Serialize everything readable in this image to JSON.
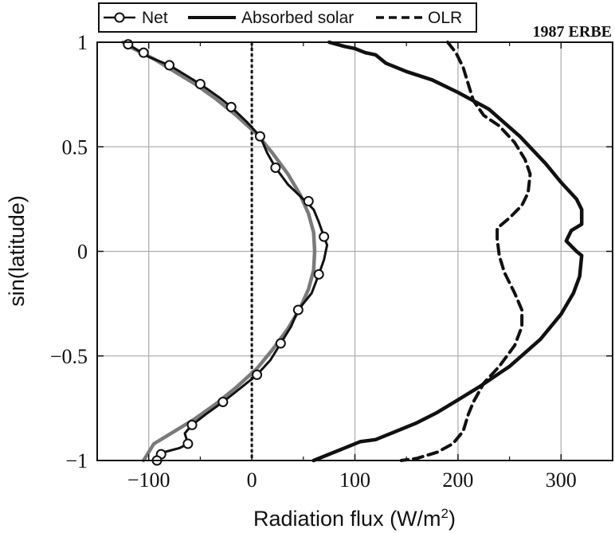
{
  "chart_data": {
    "type": "line",
    "corner_label": "1987 ERBE",
    "xlabel": "Radiation flux (W/m",
    "xlabel_sup": "2",
    "xlabel_close": ")",
    "ylabel": "sin(latitude)",
    "xlim": [
      -150,
      350
    ],
    "ylim": [
      -1,
      1
    ],
    "xticks": [
      -100,
      0,
      100,
      200,
      300
    ],
    "xtick_labels": [
      "−100",
      "0",
      "100",
      "200",
      "300"
    ],
    "yticks": [
      1,
      0.5,
      0,
      -0.5,
      -1
    ],
    "ytick_labels": [
      "1",
      "0.5",
      "0",
      "−0.5",
      "−1"
    ],
    "grid": true,
    "legend_position": "top",
    "zero_line_x": 0,
    "colors": {
      "series": "#111111",
      "fit": "#7a7a7a",
      "grid": "#b0b0b0"
    },
    "series": [
      {
        "name": "Net",
        "style": "solid-with-circle-markers",
        "points": [
          [
            -120,
            0.99
          ],
          [
            -110,
            0.96
          ],
          [
            -100,
            0.93
          ],
          [
            -80,
            0.89
          ],
          [
            -60,
            0.83
          ],
          [
            -50,
            0.8
          ],
          [
            -30,
            0.73
          ],
          [
            -20,
            0.69
          ],
          [
            -5,
            0.62
          ],
          [
            8,
            0.55
          ],
          [
            15,
            0.47
          ],
          [
            23,
            0.4
          ],
          [
            35,
            0.32
          ],
          [
            52,
            0.24
          ],
          [
            60,
            0.2
          ],
          [
            65,
            0.14
          ],
          [
            70,
            0.07
          ],
          [
            73,
            0.03
          ],
          [
            70,
            -0.04
          ],
          [
            65,
            -0.11
          ],
          [
            58,
            -0.2
          ],
          [
            45,
            -0.28
          ],
          [
            38,
            -0.36
          ],
          [
            28,
            -0.44
          ],
          [
            18,
            -0.52
          ],
          [
            5,
            -0.59
          ],
          [
            -10,
            -0.65
          ],
          [
            -28,
            -0.72
          ],
          [
            -45,
            -0.78
          ],
          [
            -58,
            -0.83
          ],
          [
            -65,
            -0.87
          ],
          [
            -62,
            -0.92
          ],
          [
            -70,
            -0.94
          ],
          [
            -85,
            -0.96
          ],
          [
            -90,
            -0.97
          ],
          [
            -95,
            -0.99
          ]
        ],
        "markers": [
          [
            -120,
            0.99
          ],
          [
            -105,
            0.95
          ],
          [
            -80,
            0.89
          ],
          [
            -50,
            0.8
          ],
          [
            -20,
            0.69
          ],
          [
            8,
            0.55
          ],
          [
            23,
            0.4
          ],
          [
            55,
            0.24
          ],
          [
            70,
            0.07
          ],
          [
            65,
            -0.11
          ],
          [
            45,
            -0.28
          ],
          [
            28,
            -0.44
          ],
          [
            5,
            -0.59
          ],
          [
            -28,
            -0.72
          ],
          [
            -58,
            -0.83
          ],
          [
            -62,
            -0.92
          ],
          [
            -88,
            -0.97
          ],
          [
            -92,
            -1.0
          ]
        ]
      },
      {
        "name": "Absorbed solar",
        "style": "solid-thick",
        "points": [
          [
            75,
            1.0
          ],
          [
            90,
            0.98
          ],
          [
            100,
            0.97
          ],
          [
            110,
            0.95
          ],
          [
            120,
            0.94
          ],
          [
            130,
            0.9
          ],
          [
            150,
            0.86
          ],
          [
            175,
            0.82
          ],
          [
            200,
            0.76
          ],
          [
            230,
            0.68
          ],
          [
            260,
            0.55
          ],
          [
            285,
            0.42
          ],
          [
            300,
            0.33
          ],
          [
            315,
            0.25
          ],
          [
            320,
            0.2
          ],
          [
            320,
            0.13
          ],
          [
            310,
            0.1
          ],
          [
            305,
            0.05
          ],
          [
            315,
            0.0
          ],
          [
            320,
            -0.02
          ],
          [
            318,
            -0.12
          ],
          [
            312,
            -0.2
          ],
          [
            300,
            -0.3
          ],
          [
            280,
            -0.42
          ],
          [
            250,
            -0.55
          ],
          [
            220,
            -0.65
          ],
          [
            200,
            -0.71
          ],
          [
            180,
            -0.77
          ],
          [
            160,
            -0.82
          ],
          [
            140,
            -0.86
          ],
          [
            120,
            -0.9
          ],
          [
            105,
            -0.91
          ],
          [
            90,
            -0.94
          ],
          [
            75,
            -0.97
          ],
          [
            60,
            -1.0
          ]
        ]
      },
      {
        "name": "OLR",
        "style": "dashed",
        "points": [
          [
            190,
            1.0
          ],
          [
            198,
            0.95
          ],
          [
            205,
            0.88
          ],
          [
            210,
            0.8
          ],
          [
            215,
            0.72
          ],
          [
            225,
            0.65
          ],
          [
            240,
            0.6
          ],
          [
            255,
            0.52
          ],
          [
            265,
            0.44
          ],
          [
            270,
            0.37
          ],
          [
            268,
            0.28
          ],
          [
            262,
            0.22
          ],
          [
            250,
            0.16
          ],
          [
            238,
            0.11
          ],
          [
            238,
            0.06
          ],
          [
            240,
            -0.02
          ],
          [
            245,
            -0.1
          ],
          [
            255,
            -0.2
          ],
          [
            262,
            -0.28
          ],
          [
            262,
            -0.36
          ],
          [
            255,
            -0.45
          ],
          [
            240,
            -0.55
          ],
          [
            225,
            -0.63
          ],
          [
            215,
            -0.72
          ],
          [
            210,
            -0.78
          ],
          [
            205,
            -0.86
          ],
          [
            195,
            -0.92
          ],
          [
            180,
            -0.96
          ],
          [
            160,
            -0.99
          ],
          [
            145,
            -1.0
          ]
        ]
      },
      {
        "name": "",
        "style": "fit-gray",
        "points": [
          [
            -125,
            1.0
          ],
          [
            -115,
            0.97
          ],
          [
            -95,
            0.92
          ],
          [
            -75,
            0.86
          ],
          [
            -55,
            0.8
          ],
          [
            -35,
            0.73
          ],
          [
            -15,
            0.65
          ],
          [
            5,
            0.56
          ],
          [
            20,
            0.47
          ],
          [
            35,
            0.37
          ],
          [
            47,
            0.27
          ],
          [
            55,
            0.18
          ],
          [
            60,
            0.09
          ],
          [
            61,
            0.0
          ],
          [
            60,
            -0.09
          ],
          [
            55,
            -0.18
          ],
          [
            47,
            -0.27
          ],
          [
            35,
            -0.37
          ],
          [
            20,
            -0.47
          ],
          [
            5,
            -0.56
          ],
          [
            -15,
            -0.65
          ],
          [
            -35,
            -0.73
          ],
          [
            -55,
            -0.8
          ],
          [
            -75,
            -0.86
          ],
          [
            -95,
            -0.92
          ],
          [
            -105,
            -1.0
          ]
        ]
      }
    ]
  }
}
